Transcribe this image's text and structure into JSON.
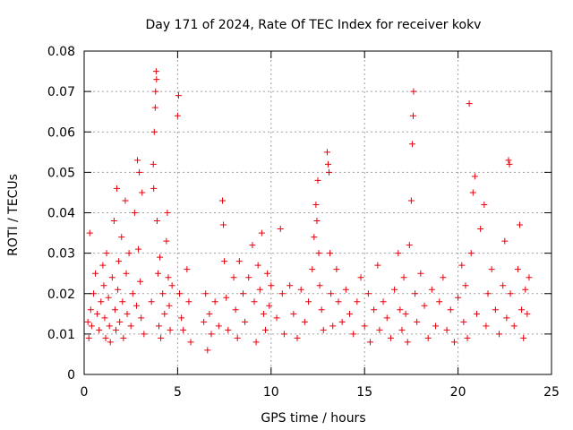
{
  "chart_data": {
    "type": "scatter",
    "title": "Day 171 of 2024, Rate Of TEC Index for receiver kokv",
    "xlabel": "GPS time / hours",
    "ylabel": "ROTI / TECUs",
    "xlim": [
      0,
      25
    ],
    "ylim": [
      0,
      0.08
    ],
    "xticks": [
      0,
      5,
      10,
      15,
      20,
      25
    ],
    "yticks": [
      0,
      0.01,
      0.02,
      0.03,
      0.04,
      0.05,
      0.06,
      0.07,
      0.08
    ],
    "xtick_labels": [
      "0",
      "5",
      "10",
      "15",
      "20",
      "25"
    ],
    "ytick_labels": [
      "0",
      "0.01",
      "0.02",
      "0.03",
      "0.04",
      "0.05",
      "0.06",
      "0.07",
      "0.08"
    ],
    "grid": true,
    "marker": "+",
    "marker_color": "#e8000b",
    "series": [
      {
        "name": "ROTI",
        "points": [
          [
            0.2,
            0.013
          ],
          [
            0.25,
            0.009
          ],
          [
            0.3,
            0.035
          ],
          [
            0.35,
            0.016
          ],
          [
            0.4,
            0.012
          ],
          [
            0.5,
            0.02
          ],
          [
            0.6,
            0.025
          ],
          [
            0.7,
            0.015
          ],
          [
            0.8,
            0.011
          ],
          [
            0.9,
            0.018
          ],
          [
            1.0,
            0.027
          ],
          [
            1.05,
            0.022
          ],
          [
            1.1,
            0.014
          ],
          [
            1.15,
            0.009
          ],
          [
            1.2,
            0.03
          ],
          [
            1.3,
            0.019
          ],
          [
            1.35,
            0.012
          ],
          [
            1.4,
            0.008
          ],
          [
            1.5,
            0.024
          ],
          [
            1.6,
            0.038
          ],
          [
            1.65,
            0.016
          ],
          [
            1.7,
            0.011
          ],
          [
            1.75,
            0.046
          ],
          [
            1.8,
            0.021
          ],
          [
            1.85,
            0.028
          ],
          [
            1.9,
            0.013
          ],
          [
            2.0,
            0.034
          ],
          [
            2.05,
            0.018
          ],
          [
            2.1,
            0.009
          ],
          [
            2.2,
            0.043
          ],
          [
            2.25,
            0.025
          ],
          [
            2.3,
            0.015
          ],
          [
            2.4,
            0.03
          ],
          [
            2.5,
            0.012
          ],
          [
            2.6,
            0.02
          ],
          [
            2.7,
            0.04
          ],
          [
            2.8,
            0.017
          ],
          [
            2.85,
            0.053
          ],
          [
            2.9,
            0.031
          ],
          [
            2.95,
            0.05
          ],
          [
            3.0,
            0.023
          ],
          [
            3.05,
            0.014
          ],
          [
            3.1,
            0.045
          ],
          [
            3.2,
            0.01
          ],
          [
            3.6,
            0.018
          ],
          [
            3.7,
            0.052
          ],
          [
            3.72,
            0.046
          ],
          [
            3.75,
            0.06
          ],
          [
            3.8,
            0.066
          ],
          [
            3.82,
            0.07
          ],
          [
            3.85,
            0.075
          ],
          [
            3.87,
            0.073
          ],
          [
            3.9,
            0.038
          ],
          [
            3.95,
            0.025
          ],
          [
            4.0,
            0.012
          ],
          [
            4.05,
            0.029
          ],
          [
            4.1,
            0.009
          ],
          [
            4.2,
            0.02
          ],
          [
            4.3,
            0.015
          ],
          [
            4.4,
            0.033
          ],
          [
            4.45,
            0.04
          ],
          [
            4.5,
            0.024
          ],
          [
            4.55,
            0.017
          ],
          [
            4.6,
            0.011
          ],
          [
            4.7,
            0.022
          ],
          [
            5.0,
            0.064
          ],
          [
            5.05,
            0.069
          ],
          [
            5.1,
            0.02
          ],
          [
            5.2,
            0.014
          ],
          [
            5.3,
            0.011
          ],
          [
            5.5,
            0.026
          ],
          [
            5.6,
            0.018
          ],
          [
            5.7,
            0.008
          ],
          [
            6.4,
            0.013
          ],
          [
            6.5,
            0.02
          ],
          [
            6.6,
            0.006
          ],
          [
            6.7,
            0.015
          ],
          [
            6.8,
            0.01
          ],
          [
            7.0,
            0.018
          ],
          [
            7.2,
            0.012
          ],
          [
            7.4,
            0.043
          ],
          [
            7.45,
            0.037
          ],
          [
            7.5,
            0.028
          ],
          [
            7.6,
            0.019
          ],
          [
            7.7,
            0.011
          ],
          [
            8.0,
            0.024
          ],
          [
            8.1,
            0.016
          ],
          [
            8.2,
            0.009
          ],
          [
            8.3,
            0.028
          ],
          [
            8.5,
            0.02
          ],
          [
            8.6,
            0.013
          ],
          [
            8.8,
            0.024
          ],
          [
            9.0,
            0.032
          ],
          [
            9.1,
            0.018
          ],
          [
            9.2,
            0.008
          ],
          [
            9.3,
            0.027
          ],
          [
            9.4,
            0.021
          ],
          [
            9.5,
            0.035
          ],
          [
            9.6,
            0.015
          ],
          [
            9.7,
            0.011
          ],
          [
            9.8,
            0.025
          ],
          [
            9.9,
            0.017
          ],
          [
            10.0,
            0.022
          ],
          [
            10.3,
            0.014
          ],
          [
            10.5,
            0.036
          ],
          [
            10.6,
            0.02
          ],
          [
            10.7,
            0.01
          ],
          [
            11.0,
            0.022
          ],
          [
            11.2,
            0.015
          ],
          [
            11.4,
            0.009
          ],
          [
            11.6,
            0.021
          ],
          [
            11.8,
            0.013
          ],
          [
            12.0,
            0.018
          ],
          [
            12.2,
            0.026
          ],
          [
            12.3,
            0.034
          ],
          [
            12.4,
            0.042
          ],
          [
            12.45,
            0.038
          ],
          [
            12.5,
            0.048
          ],
          [
            12.55,
            0.03
          ],
          [
            12.6,
            0.022
          ],
          [
            12.7,
            0.016
          ],
          [
            12.8,
            0.011
          ],
          [
            13.0,
            0.055
          ],
          [
            13.05,
            0.052
          ],
          [
            13.1,
            0.05
          ],
          [
            13.15,
            0.03
          ],
          [
            13.2,
            0.02
          ],
          [
            13.3,
            0.012
          ],
          [
            13.5,
            0.026
          ],
          [
            13.6,
            0.018
          ],
          [
            13.8,
            0.013
          ],
          [
            14.0,
            0.021
          ],
          [
            14.2,
            0.015
          ],
          [
            14.4,
            0.01
          ],
          [
            14.6,
            0.018
          ],
          [
            14.8,
            0.024
          ],
          [
            15.0,
            0.012
          ],
          [
            15.2,
            0.02
          ],
          [
            15.3,
            0.008
          ],
          [
            15.5,
            0.016
          ],
          [
            15.7,
            0.027
          ],
          [
            15.8,
            0.011
          ],
          [
            16.0,
            0.018
          ],
          [
            16.2,
            0.014
          ],
          [
            16.4,
            0.009
          ],
          [
            16.6,
            0.021
          ],
          [
            16.8,
            0.03
          ],
          [
            16.9,
            0.016
          ],
          [
            17.0,
            0.011
          ],
          [
            17.1,
            0.024
          ],
          [
            17.2,
            0.015
          ],
          [
            17.3,
            0.008
          ],
          [
            17.4,
            0.032
          ],
          [
            17.5,
            0.043
          ],
          [
            17.55,
            0.057
          ],
          [
            17.6,
            0.064
          ],
          [
            17.62,
            0.07
          ],
          [
            17.7,
            0.02
          ],
          [
            17.8,
            0.013
          ],
          [
            18.0,
            0.025
          ],
          [
            18.2,
            0.017
          ],
          [
            18.4,
            0.009
          ],
          [
            18.6,
            0.021
          ],
          [
            18.8,
            0.012
          ],
          [
            19.0,
            0.018
          ],
          [
            19.2,
            0.024
          ],
          [
            19.4,
            0.011
          ],
          [
            19.6,
            0.016
          ],
          [
            19.8,
            0.008
          ],
          [
            20.0,
            0.019
          ],
          [
            20.2,
            0.027
          ],
          [
            20.3,
            0.013
          ],
          [
            20.4,
            0.022
          ],
          [
            20.5,
            0.009
          ],
          [
            20.6,
            0.067
          ],
          [
            20.7,
            0.03
          ],
          [
            20.8,
            0.045
          ],
          [
            20.9,
            0.049
          ],
          [
            21.0,
            0.015
          ],
          [
            21.2,
            0.036
          ],
          [
            21.4,
            0.042
          ],
          [
            21.5,
            0.012
          ],
          [
            21.6,
            0.02
          ],
          [
            21.8,
            0.026
          ],
          [
            22.0,
            0.016
          ],
          [
            22.2,
            0.01
          ],
          [
            22.4,
            0.022
          ],
          [
            22.5,
            0.033
          ],
          [
            22.6,
            0.014
          ],
          [
            22.7,
            0.053
          ],
          [
            22.75,
            0.052
          ],
          [
            22.8,
            0.02
          ],
          [
            23.0,
            0.012
          ],
          [
            23.2,
            0.026
          ],
          [
            23.3,
            0.037
          ],
          [
            23.4,
            0.016
          ],
          [
            23.5,
            0.009
          ],
          [
            23.6,
            0.021
          ],
          [
            23.7,
            0.015
          ],
          [
            23.8,
            0.024
          ]
        ]
      }
    ]
  }
}
